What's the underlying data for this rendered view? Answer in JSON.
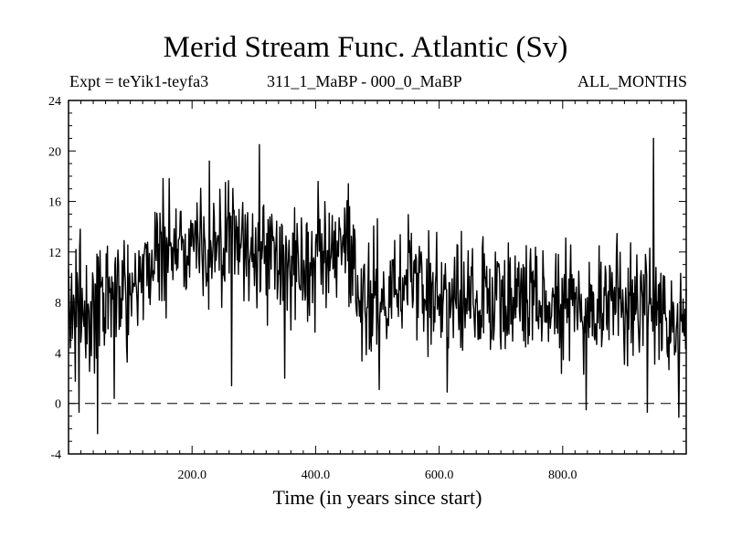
{
  "chart_data": {
    "type": "line",
    "title": "Merid Stream Func. Atlantic (Sv)",
    "subtitle_left": "Expt = teYik1-teyfa3",
    "subtitle_center": "311_1_MaBP - 000_0_MaBP",
    "subtitle_right": "ALL_MONTHS",
    "xlabel": "Time (in years since start)",
    "ylabel": "",
    "xlim": [
      0,
      1000
    ],
    "ylim": [
      -4,
      24
    ],
    "x_ticks": [
      200,
      400,
      600,
      800
    ],
    "x_tick_labels": [
      "200.0",
      "400.0",
      "600.0",
      "800.0"
    ],
    "y_ticks": [
      -4,
      0,
      4,
      8,
      12,
      16,
      20,
      24
    ],
    "y_tick_labels": [
      "-4",
      "0",
      "4",
      "8",
      "12",
      "16",
      "20",
      "24"
    ],
    "reference_line": {
      "y": 0,
      "style": "dashed"
    },
    "grid": false,
    "series": [
      {
        "color": "#000000",
        "x": [
          0,
          10,
          20,
          30,
          40,
          50,
          60,
          70,
          80,
          90,
          100,
          110,
          120,
          130,
          140,
          150,
          160,
          170,
          180,
          190,
          200,
          210,
          220,
          230,
          240,
          250,
          260,
          270,
          280,
          290,
          300,
          310,
          320,
          330,
          340,
          350,
          360,
          370,
          380,
          390,
          400,
          410,
          420,
          430,
          440,
          450,
          460,
          470,
          480,
          490,
          500,
          510,
          520,
          530,
          540,
          550,
          560,
          570,
          580,
          590,
          600,
          610,
          620,
          630,
          640,
          650,
          660,
          670,
          680,
          690,
          700,
          710,
          720,
          730,
          740,
          750,
          760,
          770,
          780,
          790,
          800,
          810,
          820,
          830,
          840,
          850,
          860,
          870,
          880,
          890,
          900,
          910,
          920,
          930,
          940,
          950,
          960,
          970,
          980,
          990,
          1000
        ],
        "values": [
          8.0,
          7.0,
          8.5,
          6.5,
          7.0,
          8.5,
          7.5,
          8.5,
          9.0,
          9.5,
          9.5,
          10.0,
          10.5,
          11.0,
          11.5,
          12.5,
          12.0,
          12.5,
          12.0,
          12.5,
          13.0,
          13.0,
          12.5,
          12.0,
          12.0,
          12.5,
          13.0,
          12.5,
          13.0,
          12.0,
          12.5,
          12.0,
          11.5,
          12.0,
          11.0,
          11.5,
          11.0,
          11.5,
          10.5,
          11.0,
          11.0,
          11.5,
          11.0,
          11.5,
          11.5,
          12.0,
          9.5,
          9.0,
          8.5,
          9.0,
          8.5,
          9.0,
          9.5,
          9.5,
          9.5,
          10.0,
          9.5,
          9.0,
          9.0,
          8.5,
          8.5,
          8.5,
          8.0,
          8.5,
          8.5,
          8.5,
          9.0,
          8.5,
          8.5,
          8.5,
          8.0,
          8.0,
          8.5,
          8.0,
          8.5,
          8.0,
          8.0,
          8.5,
          8.0,
          8.5,
          8.0,
          8.5,
          8.0,
          8.0,
          8.5,
          8.0,
          8.0,
          7.5,
          8.0,
          8.0,
          7.5,
          8.0,
          7.5,
          7.5,
          8.0,
          8.5,
          8.0,
          7.5,
          7.0,
          7.5,
          7.5
        ]
      }
    ],
    "noise_amplitude": 3.2,
    "extreme_points": [
      {
        "x": 17,
        "y": -0.7
      },
      {
        "x": 47,
        "y": -2.4
      },
      {
        "x": 74,
        "y": 0.4
      },
      {
        "x": 163,
        "y": 17.8
      },
      {
        "x": 228,
        "y": 19.2
      },
      {
        "x": 264,
        "y": 1.4
      },
      {
        "x": 309,
        "y": 20.5
      },
      {
        "x": 350,
        "y": 2.0
      },
      {
        "x": 453,
        "y": 17.4
      },
      {
        "x": 503,
        "y": 1.1
      },
      {
        "x": 613,
        "y": 0.9
      },
      {
        "x": 838,
        "y": -0.5
      },
      {
        "x": 937,
        "y": -0.7
      },
      {
        "x": 947,
        "y": 21.0
      },
      {
        "x": 988,
        "y": -1.1
      }
    ]
  }
}
